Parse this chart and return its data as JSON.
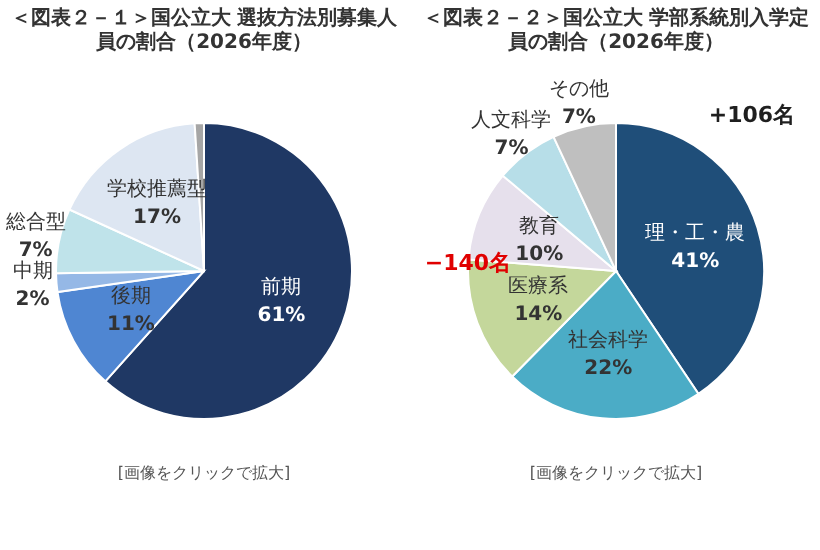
{
  "chart_data": [
    {
      "type": "pie",
      "title": "＜図表２－１＞国公立大 選抜方法別募集人員の割合（2026年度）",
      "categories": [
        "前期",
        "後期",
        "中期",
        "総合型",
        "学校推薦型",
        null
      ],
      "values": [
        61,
        11,
        2,
        7,
        17,
        1
      ],
      "value_labels": [
        "61%",
        "11%",
        "2%",
        "7%",
        "17%",
        null
      ],
      "colors": [
        "#1f3864",
        "#4f86d2",
        "#95b8e6",
        "#bfe3ea",
        "#dde6f2",
        "#a6a6a6"
      ],
      "legend": false,
      "annotations": [
        "[画像をクリックで拡大]"
      ]
    },
    {
      "type": "pie",
      "title": "＜図表２－２＞国公立大 学部系統別入学定員の割合（2026年度）",
      "categories": [
        "理・工・農",
        "社会科学",
        "医療系",
        "教育",
        "人文科学",
        "その他"
      ],
      "values": [
        41,
        22,
        14,
        10,
        7,
        7
      ],
      "value_labels": [
        "41%",
        "22%",
        "14%",
        "10%",
        "7%",
        "7%"
      ],
      "colors": [
        "#1f4e79",
        "#4bacc6",
        "#c4d79b",
        "#e6e0ec",
        "#b7dee8",
        "#bfbfbf"
      ],
      "legend": false,
      "annotations": [
        "+106名",
        "−140名",
        "[画像をクリックで拡大]"
      ]
    }
  ]
}
